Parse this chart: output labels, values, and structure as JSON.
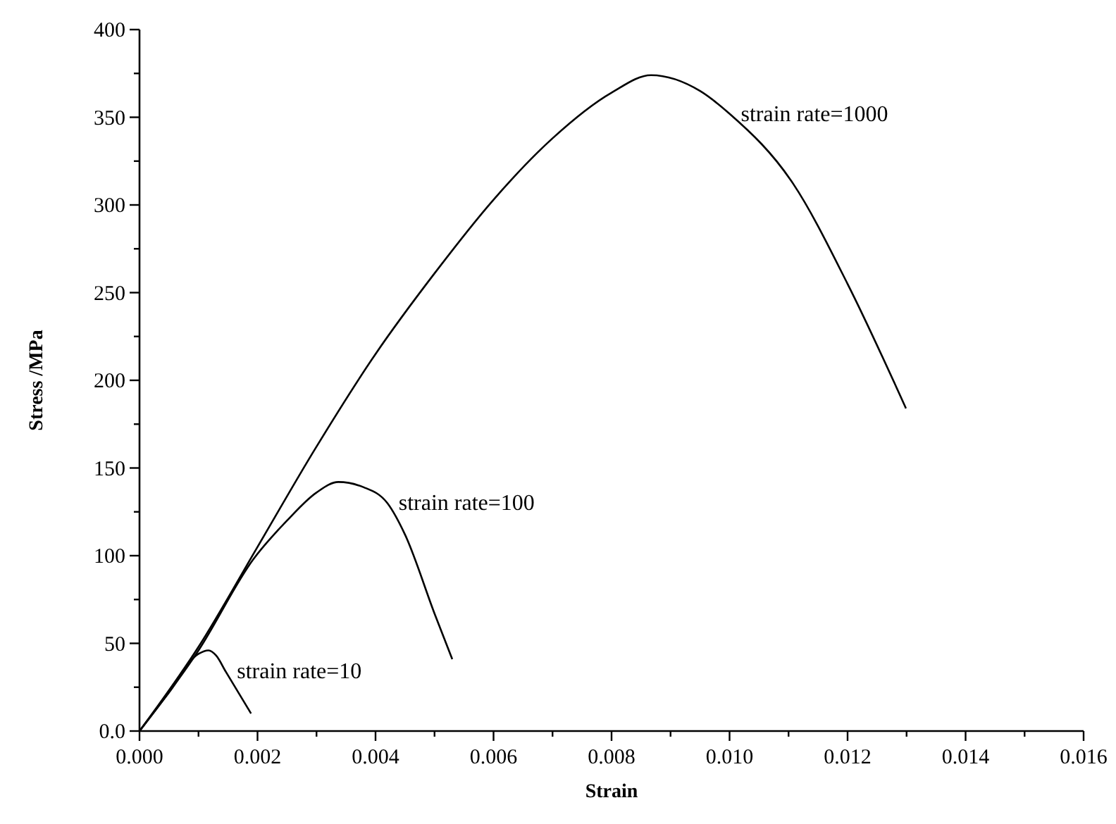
{
  "chart_data": {
    "type": "line",
    "xlabel": "Strain",
    "ylabel": "Stress /MPa",
    "xlim": [
      0,
      0.016
    ],
    "ylim": [
      0,
      400
    ],
    "xticks": [
      {
        "value": 0,
        "label": "0.000"
      },
      {
        "value": 0.001,
        "label": null
      },
      {
        "value": 0.002,
        "label": "0.002"
      },
      {
        "value": 0.003,
        "label": null
      },
      {
        "value": 0.004,
        "label": "0.004"
      },
      {
        "value": 0.005,
        "label": null
      },
      {
        "value": 0.006,
        "label": "0.006"
      },
      {
        "value": 0.007,
        "label": null
      },
      {
        "value": 0.008,
        "label": "0.008"
      },
      {
        "value": 0.009,
        "label": null
      },
      {
        "value": 0.01,
        "label": "0.010"
      },
      {
        "value": 0.011,
        "label": null
      },
      {
        "value": 0.012,
        "label": "0.012"
      },
      {
        "value": 0.013,
        "label": null
      },
      {
        "value": 0.014,
        "label": "0.014"
      },
      {
        "value": 0.015,
        "label": null
      },
      {
        "value": 0.016,
        "label": "0.016"
      }
    ],
    "yticks": [
      {
        "value": 0,
        "label": "0.0"
      },
      {
        "value": 25,
        "label": null
      },
      50,
      {
        "value": 75,
        "label": null
      },
      100,
      {
        "value": 125,
        "label": null
      },
      150,
      {
        "value": 175,
        "label": null
      },
      200,
      {
        "value": 225,
        "label": null
      },
      250,
      {
        "value": 275,
        "label": null
      },
      300,
      {
        "value": 325,
        "label": null
      },
      350,
      {
        "value": 375,
        "label": null
      },
      400
    ],
    "grid": false,
    "marker": "none",
    "line_style": "solid",
    "series": [
      {
        "color": "#000000",
        "x": [
          0,
          0.0005,
          0.001,
          0.00117,
          0.0013,
          0.00146,
          0.00189
        ],
        "values": [
          0,
          22,
          44,
          46,
          43,
          34,
          10
        ]
      },
      {
        "color": "#000000",
        "x": [
          0,
          0.001,
          0.00193,
          0.0025,
          0.003,
          0.00337,
          0.0038,
          0.0042,
          0.0045,
          0.005,
          0.0053
        ],
        "values": [
          0,
          46,
          98,
          120,
          136,
          142,
          139,
          130,
          112,
          67,
          41
        ]
      },
      {
        "color": "#000000",
        "x": [
          0,
          0.001,
          0.002,
          0.00296,
          0.004,
          0.005,
          0.006,
          0.007,
          0.008,
          0.00867,
          0.0095,
          0.01,
          0.01108,
          0.012,
          0.01299
        ],
        "values": [
          0,
          48,
          105,
          160,
          215,
          261,
          303,
          338,
          364,
          374,
          365,
          352,
          312,
          255,
          184
        ]
      }
    ],
    "annotations": [
      {
        "text": "strain rate=10",
        "x": 0.00146,
        "y": 34
      },
      {
        "text": "strain rate=100",
        "x": 0.0042,
        "y": 130
      },
      {
        "text": "strain rate=1000",
        "x": 0.01,
        "y": 352
      }
    ]
  }
}
